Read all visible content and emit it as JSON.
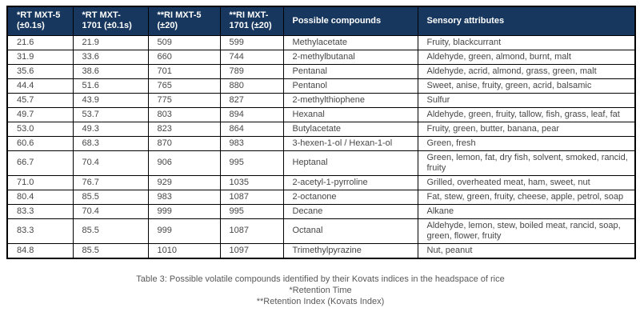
{
  "colors": {
    "header_bg": "#17375e",
    "header_text": "#ffffff",
    "body_text": "#474747",
    "caption_text": "#595959",
    "border": "#000000"
  },
  "table": {
    "column_keys": [
      "rt-mxt5",
      "rt-mxt1701",
      "ri-mxt5",
      "ri-mxt1701",
      "compound",
      "sensory"
    ],
    "headers": [
      "*RT MXT-5\n(±0.1s)",
      "*RT MXT-\n1701 (±0.1s)",
      "**RI MXT-5\n(±20)",
      "**RI MXT-\n1701 (±20)",
      "Possible compounds",
      "Sensory attributes"
    ],
    "rows": [
      [
        "21.6",
        "21.9",
        "509",
        "599",
        "Methylacetate",
        "Fruity, blackcurrant"
      ],
      [
        "31.9",
        "33.6",
        "660",
        "744",
        "2-methylbutanal",
        "Aldehyde, green, almond, burnt, malt"
      ],
      [
        "35.6",
        "38.6",
        "701",
        "789",
        "Pentanal",
        "Aldehyde, acrid, almond, grass, green, malt"
      ],
      [
        "44.4",
        "51.6",
        "765",
        "880",
        "Pentanol",
        "Sweet, anise, fruity, green, acrid, balsamic"
      ],
      [
        "45.7",
        "43.9",
        "775",
        "827",
        "2-methylthiophene",
        "Sulfur"
      ],
      [
        "49.7",
        "53.7",
        "803",
        "894",
        "Hexanal",
        "Aldehyde, green, fruity, tallow, fish, grass, leaf, fat"
      ],
      [
        "53.0",
        "49.3",
        "823",
        "864",
        "Butylacetate",
        "Fruity, green, butter, banana, pear"
      ],
      [
        "60.6",
        "68.3",
        "870",
        "983",
        "3-hexen-1-ol / Hexan-1-ol",
        "Green, fresh"
      ],
      [
        "66.7",
        "70.4",
        "906",
        "995",
        "Heptanal",
        "Green, lemon, fat, dry fish, solvent, smoked, rancid, fruity"
      ],
      [
        "71.0",
        "76.7",
        "929",
        "1035",
        "2-acetyl-1-pyrroline",
        "Grilled, overheated meat, ham, sweet, nut"
      ],
      [
        "80.4",
        "85.5",
        "983",
        "1087",
        "2-octanone",
        "Fat, stew, green, fruity, cheese, apple, petrol,  soap"
      ],
      [
        "83.3",
        "70.4",
        "999",
        "995",
        "Decane",
        "Alkane"
      ],
      [
        "83.3",
        "85.5",
        "999",
        "1087",
        "Octanal",
        "Aldehyde, lemon, stew, boiled meat, rancid, soap, green, flower, fruity"
      ],
      [
        "84.8",
        "85.5",
        "1010",
        "1097",
        "Trimethylpyrazine",
        "Nut, peanut"
      ]
    ]
  },
  "caption": {
    "title": "Table 3: Possible volatile compounds identified by their Kovats indices in the headspace of rice",
    "footnote1": "*Retention Time",
    "footnote2": "**Retention Index (Kovats Index)"
  }
}
